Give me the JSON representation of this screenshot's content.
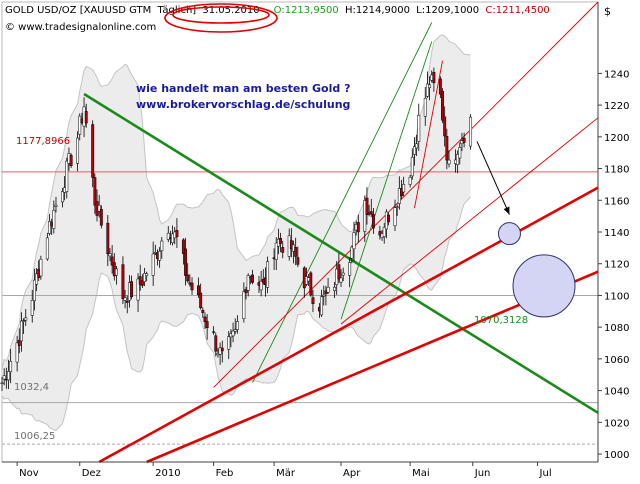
{
  "header": {
    "instrument": "GOLD USD/OZ [XAUUSD GTM",
    "period": "Täglich]",
    "date": "31.05.2010",
    "open": "O:1213,9500",
    "high": "H:1214,9000",
    "low": "L:1209,1000",
    "close": "C:1211,4500",
    "currency_symbol": "$",
    "source": "© www.tradesignalonline.com"
  },
  "annotation": {
    "line1": "wie handelt man am besten Gold ?",
    "line2": "www.brokervorschlag.de/schulung"
  },
  "level_labels": {
    "resistance": "1177,8966",
    "support_a": "1032,4",
    "support_b": "1006,25",
    "downtrend_cross": "1070,3128"
  },
  "colors": {
    "candle_up": "#ffffff",
    "candle_down": "#b0000a",
    "bands": "#c4c4c4",
    "band_fill": "#ececec",
    "trend_red": "#e00000",
    "trend_green": "#1a8a1a",
    "annotation_text": "#1a1aa0",
    "target_circle_fill": "#d4d4f4",
    "target_circle_stroke": "#303070"
  },
  "chart_data": {
    "type": "candlestick",
    "x_range": [
      "2009-10-26",
      "2010-07-29"
    ],
    "x_tick_labels": [
      {
        "date": "2009-11-02",
        "label": "Nov"
      },
      {
        "date": "2009-12-01",
        "label": "Dez"
      },
      {
        "date": "2010-01-04",
        "label": "2010"
      },
      {
        "date": "2010-02-01",
        "label": "Feb"
      },
      {
        "date": "2010-03-01",
        "label": "Mär"
      },
      {
        "date": "2010-04-01",
        "label": "Apr"
      },
      {
        "date": "2010-05-03",
        "label": "Mai"
      },
      {
        "date": "2010-06-01",
        "label": "Jun"
      },
      {
        "date": "2010-07-01",
        "label": "Jul"
      }
    ],
    "y_range": [
      995,
      1285
    ],
    "y_ticks": [
      1000,
      1020,
      1040,
      1060,
      1080,
      1100,
      1120,
      1140,
      1160,
      1180,
      1200,
      1220,
      1240
    ],
    "y_axis_side": "right",
    "close_path": [
      [
        "2009-10-26",
        1045
      ],
      [
        "2009-11-02",
        1070
      ],
      [
        "2009-11-09",
        1100
      ],
      [
        "2009-11-16",
        1140
      ],
      [
        "2009-11-23",
        1170
      ],
      [
        "2009-11-30",
        1200
      ],
      [
        "2009-12-03",
        1220
      ],
      [
        "2009-12-08",
        1160
      ],
      [
        "2009-12-14",
        1130
      ],
      [
        "2009-12-21",
        1100
      ],
      [
        "2009-12-28",
        1105
      ],
      [
        "2010-01-05",
        1125
      ],
      [
        "2010-01-11",
        1145
      ],
      [
        "2010-01-15",
        1135
      ],
      [
        "2010-01-20",
        1110
      ],
      [
        "2010-01-27",
        1090
      ],
      [
        "2010-02-05",
        1060
      ],
      [
        "2010-02-11",
        1075
      ],
      [
        "2010-02-17",
        1115
      ],
      [
        "2010-02-24",
        1105
      ],
      [
        "2010-03-02",
        1135
      ],
      [
        "2010-03-09",
        1130
      ],
      [
        "2010-03-15",
        1110
      ],
      [
        "2010-03-22",
        1095
      ],
      [
        "2010-03-26",
        1100
      ],
      [
        "2010-03-31",
        1115
      ],
      [
        "2010-04-06",
        1130
      ],
      [
        "2010-04-12",
        1160
      ],
      [
        "2010-04-19",
        1140
      ],
      [
        "2010-04-26",
        1160
      ],
      [
        "2010-05-03",
        1180
      ],
      [
        "2010-05-07",
        1210
      ],
      [
        "2010-05-12",
        1235
      ],
      [
        "2010-05-17",
        1225
      ],
      [
        "2010-05-21",
        1180
      ],
      [
        "2010-05-25",
        1195
      ],
      [
        "2010-05-31",
        1211
      ]
    ],
    "horizontal_levels": [
      {
        "value": 1177.8966,
        "style": "red"
      },
      {
        "value": 1032.4,
        "style": "gray-solid"
      },
      {
        "value": 1006.25,
        "style": "gray-dashed"
      },
      {
        "value": 1100,
        "style": "gray-solid"
      }
    ],
    "trend_lines": [
      {
        "color": "green",
        "width": "thick",
        "from": [
          "2009-12-03",
          1227
        ],
        "to": [
          "2010-07-29",
          1026
        ]
      },
      {
        "color": "green",
        "width": "thin",
        "from": [
          "2010-02-19",
          1045
        ],
        "to": [
          "2010-05-13",
          1272
        ]
      },
      {
        "color": "green",
        "width": "thin",
        "from": [
          "2010-04-01",
          1085
        ],
        "to": [
          "2010-05-13",
          1260
        ]
      },
      {
        "color": "red",
        "width": "thick",
        "from": [
          "2009-12-10",
          995
        ],
        "to": [
          "2010-07-29",
          1168
        ]
      },
      {
        "color": "red",
        "width": "thick",
        "from": [
          "2010-01-01",
          995
        ],
        "to": [
          "2010-07-29",
          1115
        ]
      },
      {
        "color": "red",
        "width": "thin",
        "from": [
          "2010-02-01",
          1042
        ],
        "to": [
          "2010-07-29",
          1285
        ]
      },
      {
        "color": "red",
        "width": "thin",
        "from": [
          "2010-04-01",
          1082
        ],
        "to": [
          "2010-07-29",
          1212
        ]
      },
      {
        "color": "red",
        "width": "thin",
        "from": [
          "2010-05-05",
          1155
        ],
        "to": [
          "2010-05-18",
          1248
        ]
      }
    ],
    "target_circles": [
      {
        "center": [
          "2010-06-18",
          1139
        ],
        "size": "small"
      },
      {
        "center": [
          "2010-07-04",
          1106
        ],
        "size": "large"
      }
    ],
    "projection_arrow": {
      "from": [
        "2010-06-03",
        1197
      ],
      "to": [
        "2010-06-18",
        1151
      ]
    }
  }
}
